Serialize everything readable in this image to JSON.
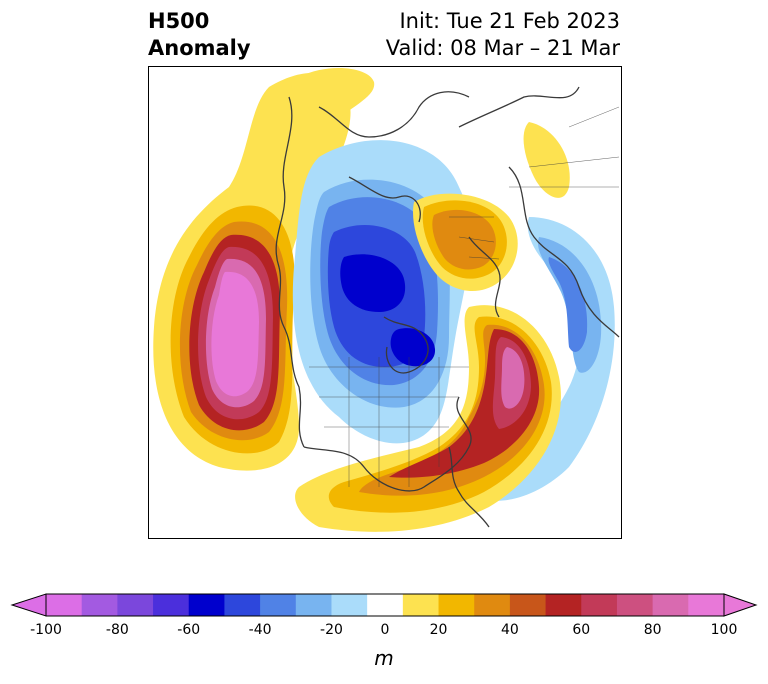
{
  "title": {
    "left_line1": "H500",
    "left_line2": "Anomaly",
    "init": "Init: Tue 21 Feb 2023",
    "valid": "Valid: 08 Mar – 21 Mar"
  },
  "colorbar": {
    "units": "m",
    "ticks": [
      "-100",
      "-80",
      "-60",
      "-40",
      "-20",
      "0",
      "20",
      "40",
      "60",
      "80",
      "100"
    ],
    "tick_values": [
      -100,
      -80,
      -60,
      -40,
      -20,
      0,
      20,
      40,
      60,
      80,
      100
    ],
    "bins": [
      -100,
      -90,
      -80,
      -70,
      -60,
      -50,
      -40,
      -30,
      -20,
      -10,
      10,
      20,
      30,
      40,
      50,
      60,
      70,
      80,
      90,
      100
    ],
    "colors": [
      "#dc6ee6",
      "#a35ae1",
      "#7b47dc",
      "#4b2fdc",
      "#0000cd",
      "#2d47dc",
      "#5082e6",
      "#78b4f0",
      "#aadcfa",
      "#ffffff",
      "#fde250",
      "#f2b700",
      "#e08a10",
      "#c8561a",
      "#b42323",
      "#c23a58",
      "#cd5080",
      "#d96ab0",
      "#e878d8"
    ],
    "over_color": "#e878d8",
    "under_color": "#dc6ee6"
  },
  "map": {
    "projection": "north-polar-stereographic",
    "field": "500 hPa geopotential height anomaly",
    "colors": {
      "coast": "#3a3a3a",
      "pos1": "#fde250",
      "pos2": "#f2b700",
      "pos3": "#e08a10",
      "pos4": "#c8561a",
      "pos5": "#b42323",
      "pos6": "#c23a58",
      "pos7": "#d96ab0",
      "pos8": "#e878d8",
      "neg1": "#aadcfa",
      "neg2": "#78b4f0",
      "neg3": "#5082e6",
      "neg4": "#2d47dc",
      "neg5": "#0000cd"
    }
  }
}
